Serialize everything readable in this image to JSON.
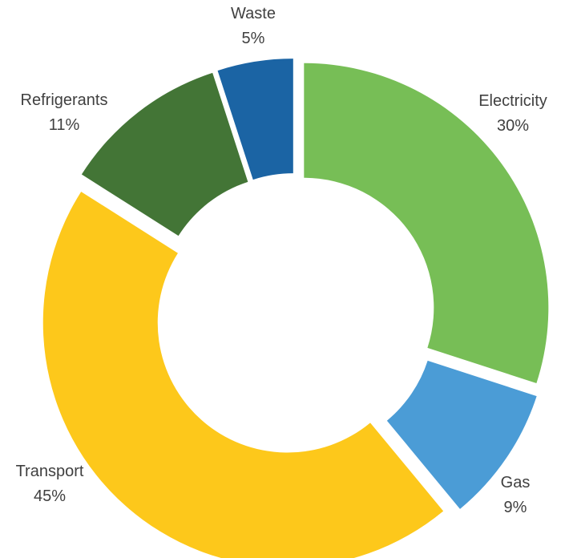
{
  "chart_data": {
    "type": "pie",
    "title": "",
    "categories": [
      "Electricity",
      "Gas",
      "Transport",
      "Refrigerants",
      "Waste"
    ],
    "values": [
      30,
      9,
      45,
      11,
      5
    ],
    "value_labels": [
      "30%",
      "9%",
      "45%",
      "11%",
      "5%"
    ],
    "colors": [
      "#77be56",
      "#4b9cd6",
      "#fdc81b",
      "#437536",
      "#1b64a4"
    ],
    "donut": true,
    "legend": "none",
    "labels_position": "outside"
  }
}
